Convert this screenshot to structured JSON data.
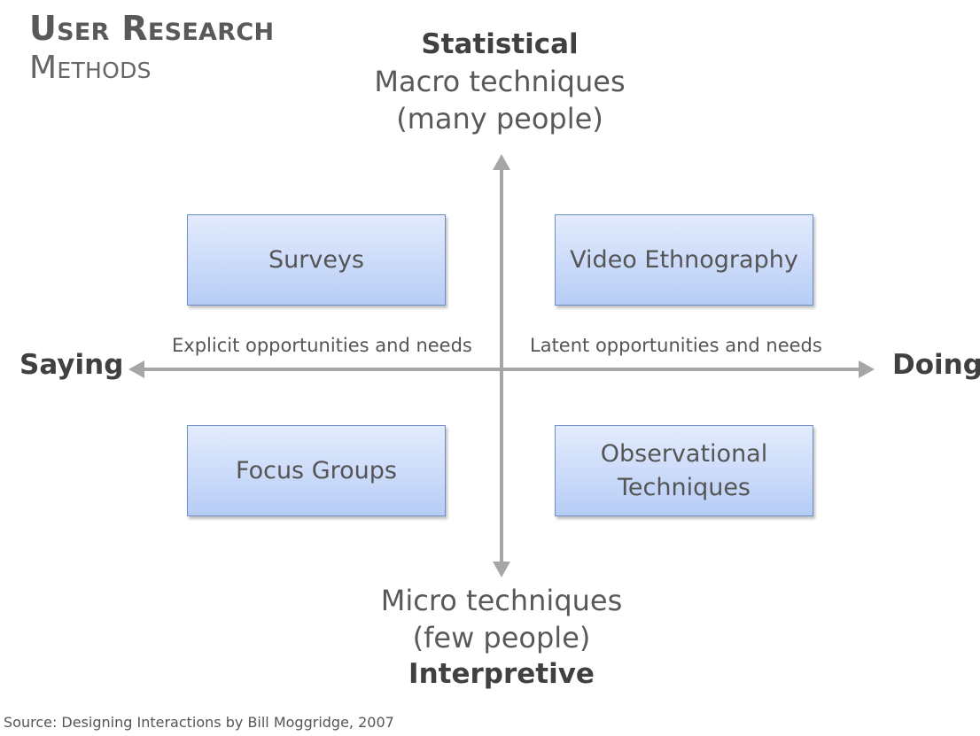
{
  "title": {
    "line1": "User Research",
    "line2": "Methods"
  },
  "top": {
    "heading": "Statistical",
    "line1": "Macro techniques",
    "line2": "(many people)"
  },
  "bottom": {
    "line1": "Micro techniques",
    "line2": "(few people)",
    "heading": "Interpretive"
  },
  "axis": {
    "left_label": "Saying",
    "right_label": "Doing",
    "left_caption": "Explicit opportunities and needs",
    "right_caption": "Latent opportunities and needs"
  },
  "quadrants": {
    "top_left": "Surveys",
    "top_right": "Video Ethnography",
    "bottom_left": "Focus Groups",
    "bottom_right_line1": "Observational",
    "bottom_right_line2": "Techniques"
  },
  "source": "Source: Designing Interactions by Bill Moggridge, 2007",
  "colors": {
    "axis": "#a6a6a6",
    "box_border": "#6b8ec9",
    "box_fill_top": "#e3ecfd",
    "box_fill_bottom": "#b7ccf6"
  }
}
